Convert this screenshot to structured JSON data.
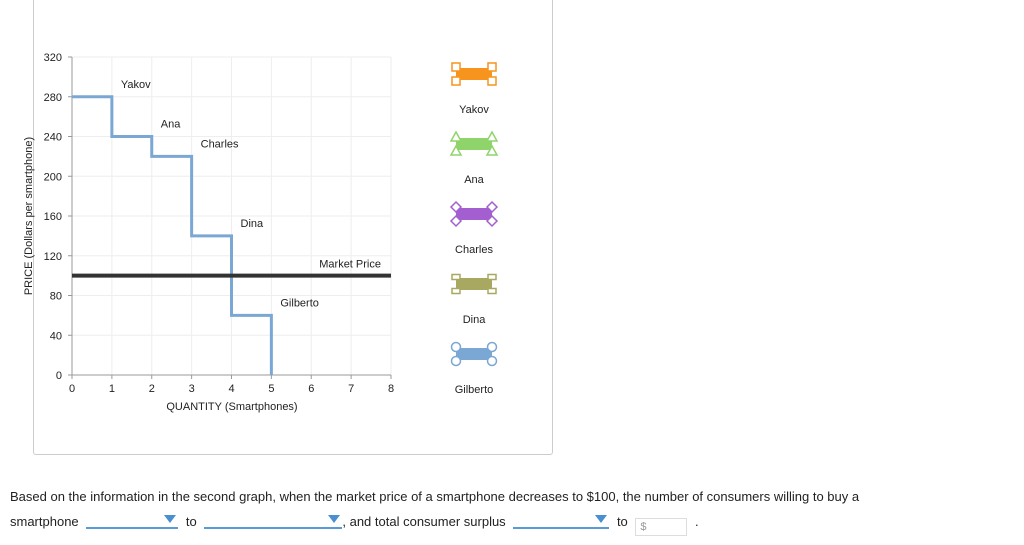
{
  "chart_data": {
    "type": "line",
    "xlabel": "QUANTITY (Smartphones)",
    "ylabel": "PRICE (Dollars per smartphone)",
    "xlim": [
      0,
      8
    ],
    "ylim": [
      0,
      320
    ],
    "xticks": [
      0,
      1,
      2,
      3,
      4,
      5,
      6,
      7,
      8
    ],
    "yticks": [
      0,
      40,
      80,
      120,
      160,
      200,
      240,
      280,
      320
    ],
    "grid": true,
    "demand_steps": [
      {
        "name": "Yakov",
        "price": 280,
        "from": 0,
        "to": 1
      },
      {
        "name": "Ana",
        "price": 240,
        "from": 1,
        "to": 2
      },
      {
        "name": "Charles",
        "price": 220,
        "from": 2,
        "to": 3
      },
      {
        "name": "Dina",
        "price": 140,
        "from": 3,
        "to": 4
      },
      {
        "name": "Gilberto",
        "price": 60,
        "from": 4,
        "to": 5
      }
    ],
    "demand_color": "#7ba7d4",
    "market_price": {
      "label": "Market Price",
      "value": 100,
      "color": "#333333"
    },
    "legend_placement": "right",
    "legend": [
      {
        "label": "Yakov",
        "color": "#f7941d",
        "marker": "square"
      },
      {
        "label": "Ana",
        "color": "#8ed46b",
        "marker": "triangle"
      },
      {
        "label": "Charles",
        "color": "#a35fd0",
        "marker": "diamond"
      },
      {
        "label": "Dina",
        "color": "#a8a860",
        "marker": "dash"
      },
      {
        "label": "Gilberto",
        "color": "#7ba7d4",
        "marker": "circle"
      }
    ]
  },
  "question": {
    "line1": "Based on the information in the second graph, when the market price of a smartphone decreases to $100, the number of consumers willing to buy a",
    "part1": "smartphone",
    "to1": "to",
    "part2": ", and total consumer surplus",
    "to2": "to",
    "dollar_placeholder": "$",
    "end": "."
  }
}
